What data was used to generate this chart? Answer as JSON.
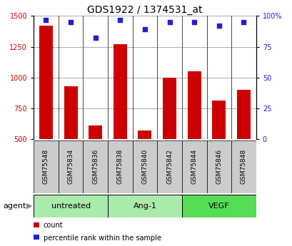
{
  "title": "GDS1922 / 1374531_at",
  "samples": [
    "GSM75548",
    "GSM75834",
    "GSM75836",
    "GSM75838",
    "GSM75840",
    "GSM75842",
    "GSM75844",
    "GSM75846",
    "GSM75848"
  ],
  "counts": [
    1420,
    930,
    610,
    1270,
    570,
    1000,
    1050,
    810,
    900
  ],
  "percentiles": [
    97,
    95,
    82,
    97,
    89,
    95,
    95,
    92,
    95
  ],
  "groups": [
    {
      "label": "untreated",
      "start": 0,
      "end": 3,
      "color": "#aaeaaa"
    },
    {
      "label": "Ang-1",
      "start": 3,
      "end": 6,
      "color": "#aaeaaa"
    },
    {
      "label": "VEGF",
      "start": 6,
      "end": 9,
      "color": "#55dd55"
    }
  ],
  "bar_color": "#cc0000",
  "dot_color": "#2222cc",
  "ylim_left": [
    500,
    1500
  ],
  "ylim_right": [
    0,
    100
  ],
  "yticks_left": [
    500,
    750,
    1000,
    1250,
    1500
  ],
  "yticks_right": [
    0,
    25,
    50,
    75,
    100
  ],
  "background_color": "#ffffff",
  "bar_width": 0.55,
  "legend_count_label": "count",
  "legend_pct_label": "percentile rank within the sample",
  "agent_label": "agent",
  "title_fontsize": 10,
  "axis_fontsize": 7,
  "tick_fontsize": 7,
  "sample_fontsize": 6.5,
  "group_label_fontsize": 8
}
